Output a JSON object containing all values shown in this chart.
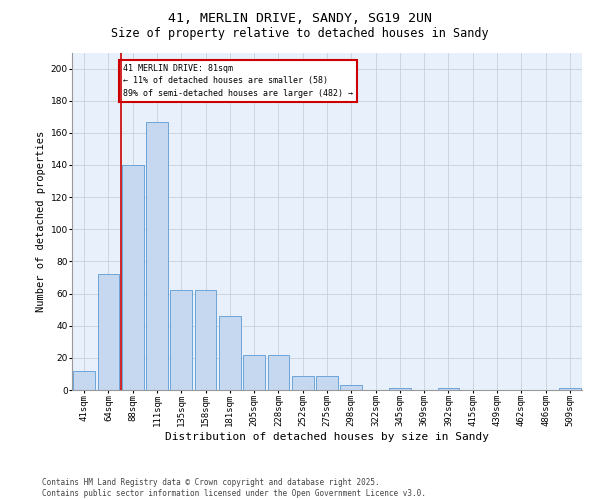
{
  "title1": "41, MERLIN DRIVE, SANDY, SG19 2UN",
  "title2": "Size of property relative to detached houses in Sandy",
  "xlabel": "Distribution of detached houses by size in Sandy",
  "ylabel": "Number of detached properties",
  "categories": [
    "41sqm",
    "64sqm",
    "88sqm",
    "111sqm",
    "135sqm",
    "158sqm",
    "181sqm",
    "205sqm",
    "228sqm",
    "252sqm",
    "275sqm",
    "298sqm",
    "322sqm",
    "345sqm",
    "369sqm",
    "392sqm",
    "415sqm",
    "439sqm",
    "462sqm",
    "486sqm",
    "509sqm"
  ],
  "values": [
    12,
    72,
    140,
    167,
    62,
    62,
    46,
    22,
    22,
    9,
    9,
    3,
    0,
    1,
    0,
    1,
    0,
    0,
    0,
    0,
    1
  ],
  "bar_color": "#c5d8f0",
  "bar_edge_color": "#5b9bd5",
  "grid_color": "#c8d0d8",
  "annotation_text": "41 MERLIN DRIVE: 81sqm\n← 11% of detached houses are smaller (58)\n89% of semi-detached houses are larger (482) →",
  "annotation_box_color": "#ffffff",
  "annotation_box_edge": "#cc0000",
  "footnote": "Contains HM Land Registry data © Crown copyright and database right 2025.\nContains public sector information licensed under the Open Government Licence v3.0.",
  "ylim": [
    0,
    210
  ],
  "yticks": [
    0,
    20,
    40,
    60,
    80,
    100,
    120,
    140,
    160,
    180,
    200
  ],
  "background_color": "#e8f0fb",
  "title1_fontsize": 9.5,
  "title2_fontsize": 8.5,
  "xlabel_fontsize": 8,
  "ylabel_fontsize": 7.5,
  "tick_fontsize": 6.5,
  "annotation_fontsize": 6,
  "footnote_fontsize": 5.5
}
